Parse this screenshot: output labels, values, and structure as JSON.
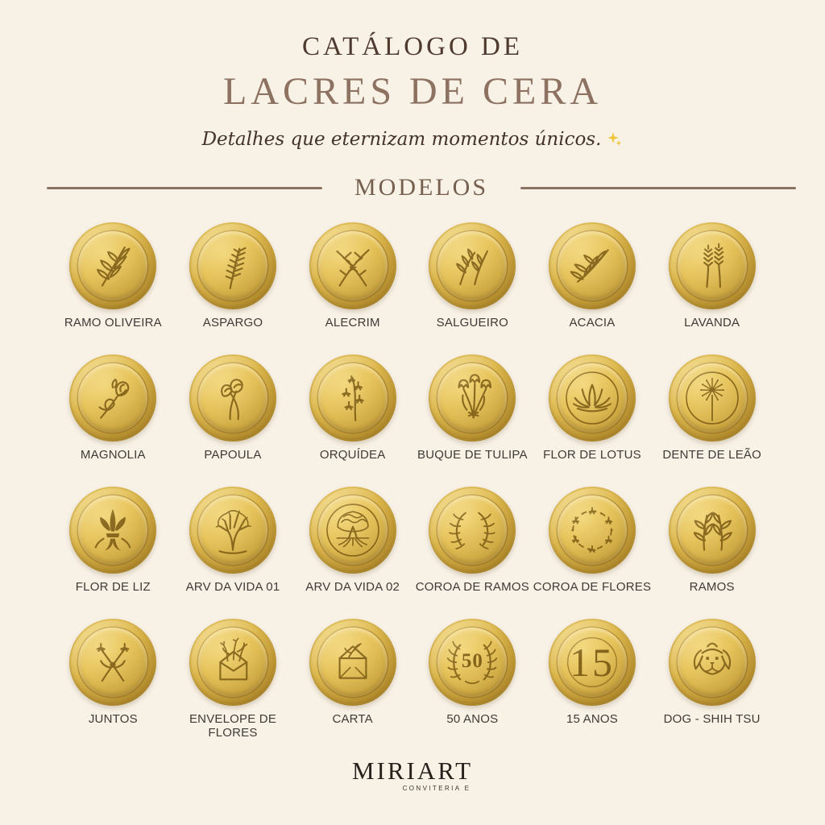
{
  "page_background": "#f8f1e6",
  "header": {
    "kicker": "CATÁLOGO DE",
    "title": "LACRES DE CERA",
    "subtitle": "Detalhes que eternizam momentos únicos.",
    "subtitle_decoration": "sparkles-icon",
    "section_label": "MODELOS"
  },
  "colors": {
    "kicker_text": "#4e3a2e",
    "title_text": "#8d7261",
    "divider_line": "#8a7263",
    "wax_gold": "#ddb84e",
    "engraving": "#7a5a14",
    "label_text": "#3e3a37",
    "sparkle_gold": "#f0c63f"
  },
  "catalog": {
    "items": [
      {
        "label": "RAMO OLIVEIRA",
        "icon": "olive-branch-seal-icon"
      },
      {
        "label": "ASPARGO",
        "icon": "asparagus-fern-seal-icon"
      },
      {
        "label": "ALECRIM",
        "icon": "rosemary-seal-icon"
      },
      {
        "label": "SALGUEIRO",
        "icon": "willow-seal-icon"
      },
      {
        "label": "ACACIA",
        "icon": "acacia-seal-icon"
      },
      {
        "label": "LAVANDA",
        "icon": "lavender-seal-icon"
      },
      {
        "label": "MAGNOLIA",
        "icon": "magnolia-seal-icon"
      },
      {
        "label": "PAPOULA",
        "icon": "poppy-seal-icon"
      },
      {
        "label": "ORQUÍDEA",
        "icon": "orchid-seal-icon"
      },
      {
        "label": "BUQUE DE TULIPA",
        "icon": "tulip-bouquet-seal-icon"
      },
      {
        "label": "FLOR DE LOTUS",
        "icon": "lotus-seal-icon"
      },
      {
        "label": "DENTE DE LEÃO",
        "icon": "dandelion-seal-icon"
      },
      {
        "label": "FLOR DE LIZ",
        "icon": "fleur-de-lis-seal-icon"
      },
      {
        "label": "ARV DA VIDA 01",
        "icon": "tree-of-life-1-seal-icon"
      },
      {
        "label": "ARV DA VIDA 02",
        "icon": "tree-of-life-2-seal-icon"
      },
      {
        "label": "COROA DE RAMOS",
        "icon": "branch-wreath-seal-icon"
      },
      {
        "label": "COROA DE FLORES",
        "icon": "flower-wreath-seal-icon"
      },
      {
        "label": "RAMOS",
        "icon": "branches-seal-icon"
      },
      {
        "label": "JUNTOS",
        "icon": "crossed-flowers-seal-icon"
      },
      {
        "label": "ENVELOPE DE FLORES",
        "icon": "flower-envelope-seal-icon"
      },
      {
        "label": "CARTA",
        "icon": "letter-seal-icon"
      },
      {
        "label": "50 ANOS",
        "icon": "50-years-wreath-seal-icon",
        "seal_text": "50"
      },
      {
        "label": "15 ANOS",
        "icon": "15-years-seal-icon",
        "seal_text": "15"
      },
      {
        "label": "DOG - SHIH TSU",
        "icon": "shih-tzu-dog-seal-icon"
      }
    ]
  },
  "footer": {
    "brand": "MIRIART",
    "tagline": "CONVITERIA E"
  }
}
